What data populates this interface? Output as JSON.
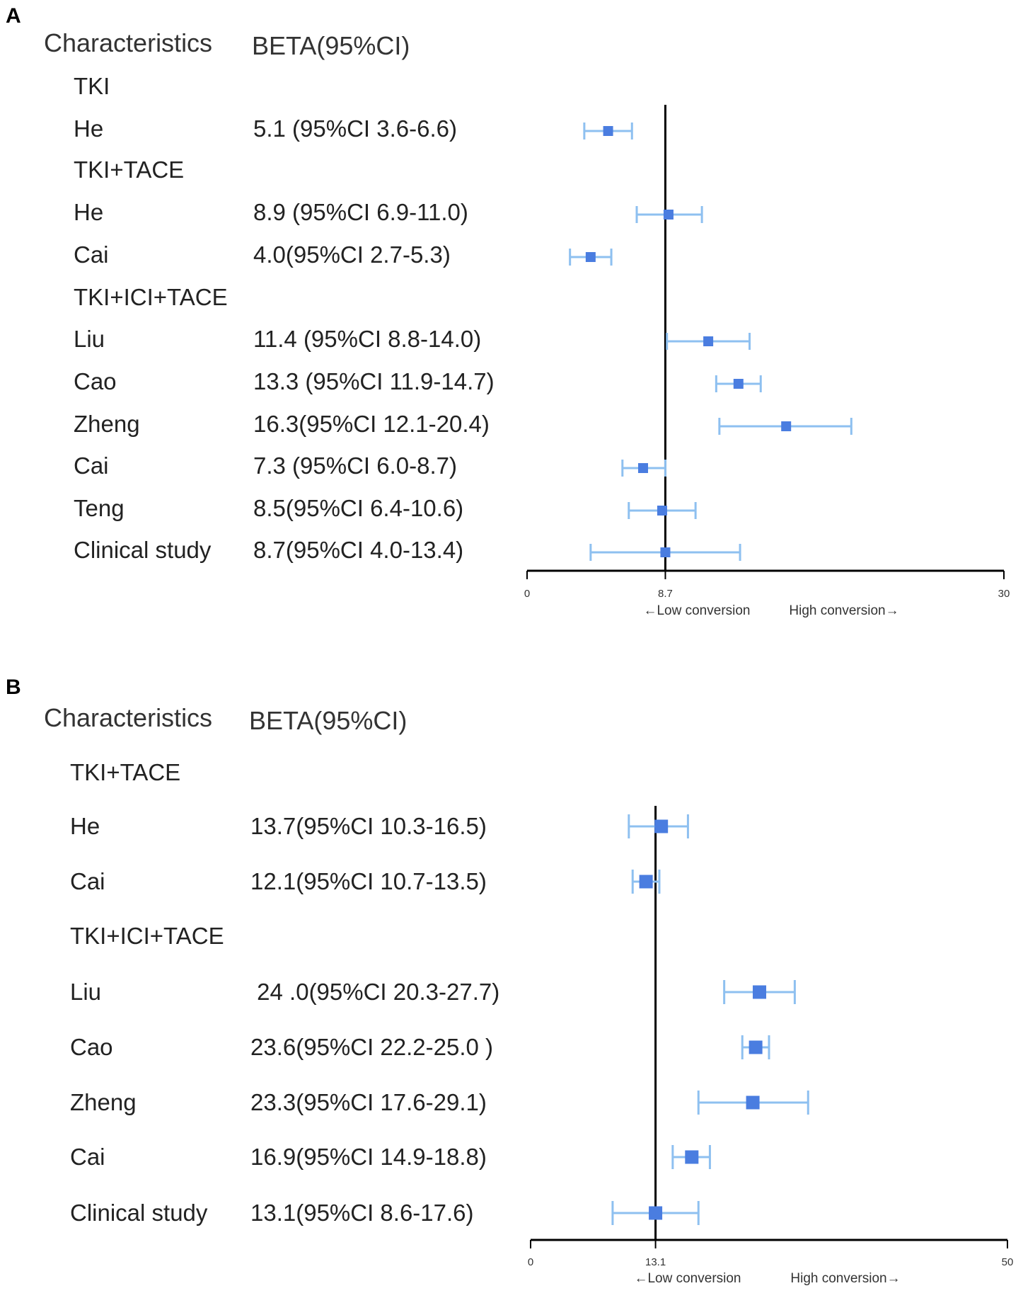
{
  "chart_data": [
    {
      "panel": "A",
      "type": "forest",
      "headers": {
        "characteristics": "Characteristics",
        "beta": "BETA(95%CI)"
      },
      "xlim": [
        0,
        30
      ],
      "reference": 8.7,
      "tick_labels": [
        "0",
        "8.7",
        "30"
      ],
      "low_label": "←Low conversion",
      "high_label": "High conversion→",
      "rows": [
        {
          "label": "TKI",
          "group": true
        },
        {
          "label": "He",
          "text": "5.1 (95%CI 3.6-6.6)",
          "est": 5.1,
          "lo": 3.6,
          "hi": 6.6
        },
        {
          "label": "TKI+TACE",
          "group": true
        },
        {
          "label": "He",
          "text": "8.9 (95%CI 6.9-11.0)",
          "est": 8.9,
          "lo": 6.9,
          "hi": 11.0
        },
        {
          "label": "Cai",
          "text": "4.0(95%CI 2.7-5.3)",
          "est": 4.0,
          "lo": 2.7,
          "hi": 5.3
        },
        {
          "label": "TKI+ICI+TACE",
          "group": true
        },
        {
          "label": "Liu",
          "text": "11.4 (95%CI 8.8-14.0)",
          "est": 11.4,
          "lo": 8.8,
          "hi": 14.0
        },
        {
          "label": "Cao",
          "text": "13.3 (95%CI 11.9-14.7)",
          "est": 13.3,
          "lo": 11.9,
          "hi": 14.7
        },
        {
          "label": "Zheng",
          "text": "16.3(95%CI 12.1-20.4)",
          "est": 16.3,
          "lo": 12.1,
          "hi": 20.4
        },
        {
          "label": "Cai",
          "text": "7.3 (95%CI 6.0-8.7)",
          "est": 7.3,
          "lo": 6.0,
          "hi": 8.7
        },
        {
          "label": "Teng",
          "text": "8.5(95%CI 6.4-10.6)",
          "est": 8.5,
          "lo": 6.4,
          "hi": 10.6
        },
        {
          "label": "Clinical study",
          "text": "8.7(95%CI 4.0-13.4)",
          "est": 8.7,
          "lo": 4.0,
          "hi": 13.4
        }
      ]
    },
    {
      "panel": "B",
      "type": "forest",
      "headers": {
        "characteristics": "Characteristics",
        "beta": "BETA(95%CI)"
      },
      "xlim": [
        0,
        50
      ],
      "reference": 13.1,
      "tick_labels": [
        "0",
        "13.1",
        "50"
      ],
      "low_label": "←Low conversion",
      "high_label": "High conversion→",
      "rows": [
        {
          "label": "TKI+TACE",
          "group": true
        },
        {
          "label": "He",
          "text": "13.7(95%CI 10.3-16.5)",
          "est": 13.7,
          "lo": 10.3,
          "hi": 16.5
        },
        {
          "label": "Cai",
          "text": "12.1(95%CI 10.7-13.5)",
          "est": 12.1,
          "lo": 10.7,
          "hi": 13.5
        },
        {
          "label": "TKI+ICI+TACE",
          "group": true
        },
        {
          "label": "Liu",
          "text": " 24 .0(95%CI 20.3-27.7)",
          "est": 24.0,
          "lo": 20.3,
          "hi": 27.7
        },
        {
          "label": "Cao",
          "text": "23.6(95%CI 22.2-25.0 )",
          "est": 23.6,
          "lo": 22.2,
          "hi": 25.0
        },
        {
          "label": "Zheng",
          "text": "23.3(95%CI 17.6-29.1)",
          "est": 23.3,
          "lo": 17.6,
          "hi": 29.1
        },
        {
          "label": "Cai",
          "text": "16.9(95%CI 14.9-18.8)",
          "est": 16.9,
          "lo": 14.9,
          "hi": 18.8
        },
        {
          "label": "Clinical study",
          "text": "13.1(95%CI 8.6-17.6)",
          "est": 13.1,
          "lo": 8.6,
          "hi": 17.6
        }
      ]
    }
  ],
  "colors": {
    "ci_line": "#8ec0f0",
    "marker": "#4a7de0",
    "axis": "#000000"
  }
}
